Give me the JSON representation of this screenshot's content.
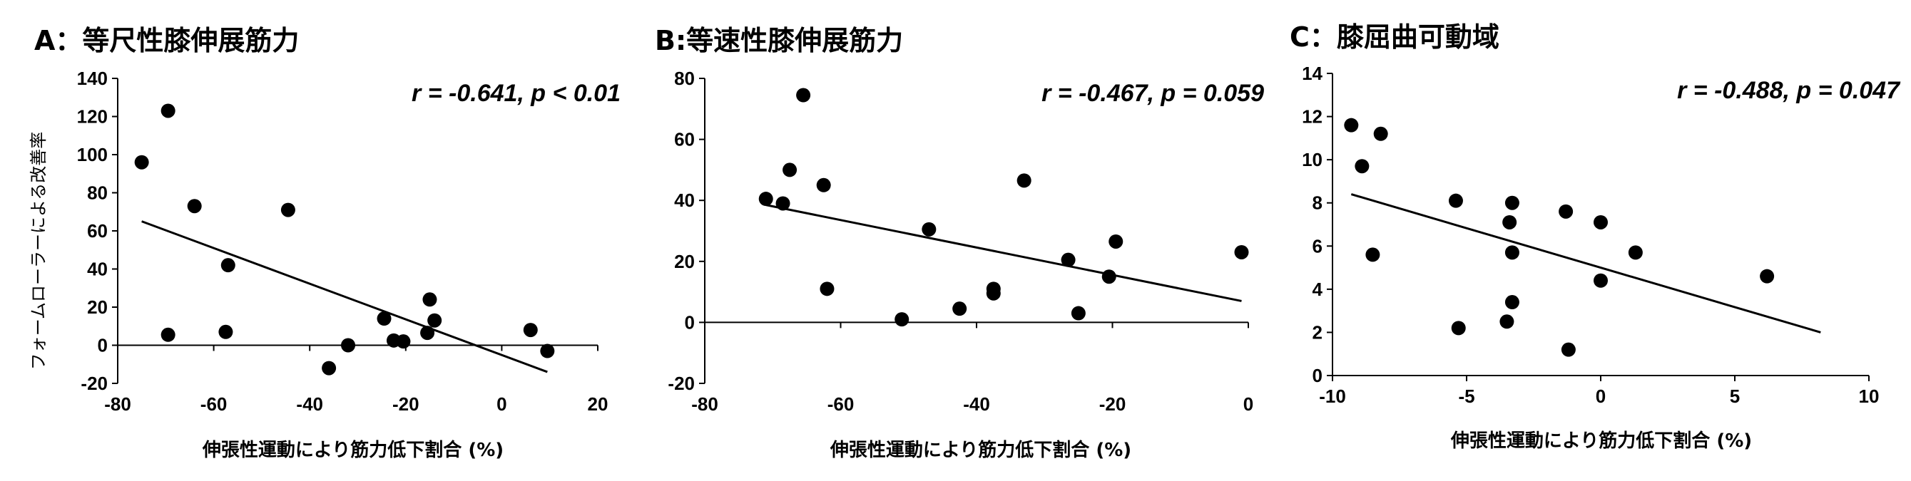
{
  "chart_data": [
    {
      "type": "scatter",
      "title": "A：等尺性膝伸展筋力",
      "annotation": "r = -0.641, p < 0.01",
      "xlabel": "伸張性運動により筋力低下割合 (%)",
      "ylabel": "フォームローラーによる改善率",
      "xlim": [
        -80,
        20
      ],
      "ylim": [
        -20,
        140
      ],
      "xticks": [
        -80,
        -60,
        -40,
        -20,
        0,
        20
      ],
      "yticks": [
        -20,
        0,
        20,
        40,
        60,
        80,
        100,
        120,
        140
      ],
      "points": [
        [
          -75,
          96
        ],
        [
          -69.5,
          123
        ],
        [
          -69.5,
          5.5
        ],
        [
          -64,
          73
        ],
        [
          -57,
          42
        ],
        [
          -57.5,
          7
        ],
        [
          -44.5,
          71
        ],
        [
          -36,
          -12
        ],
        [
          -32,
          0
        ],
        [
          -24.5,
          14
        ],
        [
          -22.5,
          2.5
        ],
        [
          -20.5,
          2
        ],
        [
          -15.5,
          6.5
        ],
        [
          -15,
          24
        ],
        [
          -14,
          13
        ],
        [
          6,
          8
        ],
        [
          9.5,
          -3
        ]
      ],
      "trendline": [
        [
          -75,
          65
        ],
        [
          9.5,
          -14
        ]
      ]
    },
    {
      "type": "scatter",
      "title": "B:等速性膝伸展筋力",
      "annotation": "r = -0.467, p = 0.059",
      "xlabel": "伸張性運動により筋力低下割合 (%)",
      "ylabel": "",
      "xlim": [
        -80,
        0
      ],
      "ylim": [
        -20,
        80
      ],
      "xticks": [
        -80,
        -60,
        -40,
        -20,
        0
      ],
      "yticks": [
        -20,
        0,
        20,
        40,
        60,
        80
      ],
      "points": [
        [
          -71,
          40.5
        ],
        [
          -68.5,
          39
        ],
        [
          -67.5,
          50
        ],
        [
          -65.5,
          74.5
        ],
        [
          -62.5,
          45
        ],
        [
          -62,
          11
        ],
        [
          -51,
          1
        ],
        [
          -47,
          30.5
        ],
        [
          -42.5,
          4.5
        ],
        [
          -37.5,
          11
        ],
        [
          -37.5,
          9.5
        ],
        [
          -33,
          46.5
        ],
        [
          -26.5,
          20.5
        ],
        [
          -25,
          3
        ],
        [
          -20.5,
          15
        ],
        [
          -19.5,
          26.5
        ],
        [
          -1,
          23
        ]
      ],
      "trendline": [
        [
          -71,
          38.5
        ],
        [
          -1,
          7
        ]
      ]
    },
    {
      "type": "scatter",
      "title": "C：膝屈曲可動域",
      "annotation": "r = -0.488, p = 0.047",
      "xlabel": "伸張性運動により筋力低下割合 (%)",
      "ylabel": "",
      "xlim": [
        -10,
        10
      ],
      "ylim": [
        0,
        14
      ],
      "xticks": [
        -10,
        -5,
        0,
        5,
        10
      ],
      "yticks": [
        0,
        2,
        4,
        6,
        8,
        10,
        12,
        14
      ],
      "points": [
        [
          -9.3,
          11.6
        ],
        [
          -8.9,
          9.7
        ],
        [
          -8.5,
          5.6
        ],
        [
          -8.2,
          11.2
        ],
        [
          -5.4,
          8.1
        ],
        [
          -5.3,
          2.2
        ],
        [
          -3.5,
          2.5
        ],
        [
          -3.4,
          7.1
        ],
        [
          -3.3,
          8.0
        ],
        [
          -3.3,
          5.7
        ],
        [
          -3.3,
          3.4
        ],
        [
          -1.3,
          7.6
        ],
        [
          -1.2,
          1.2
        ],
        [
          0,
          7.1
        ],
        [
          0,
          4.4
        ],
        [
          1.3,
          5.7
        ],
        [
          6.2,
          4.6
        ]
      ],
      "trendline": [
        [
          -9.3,
          8.4
        ],
        [
          8.2,
          2.0
        ]
      ]
    }
  ]
}
